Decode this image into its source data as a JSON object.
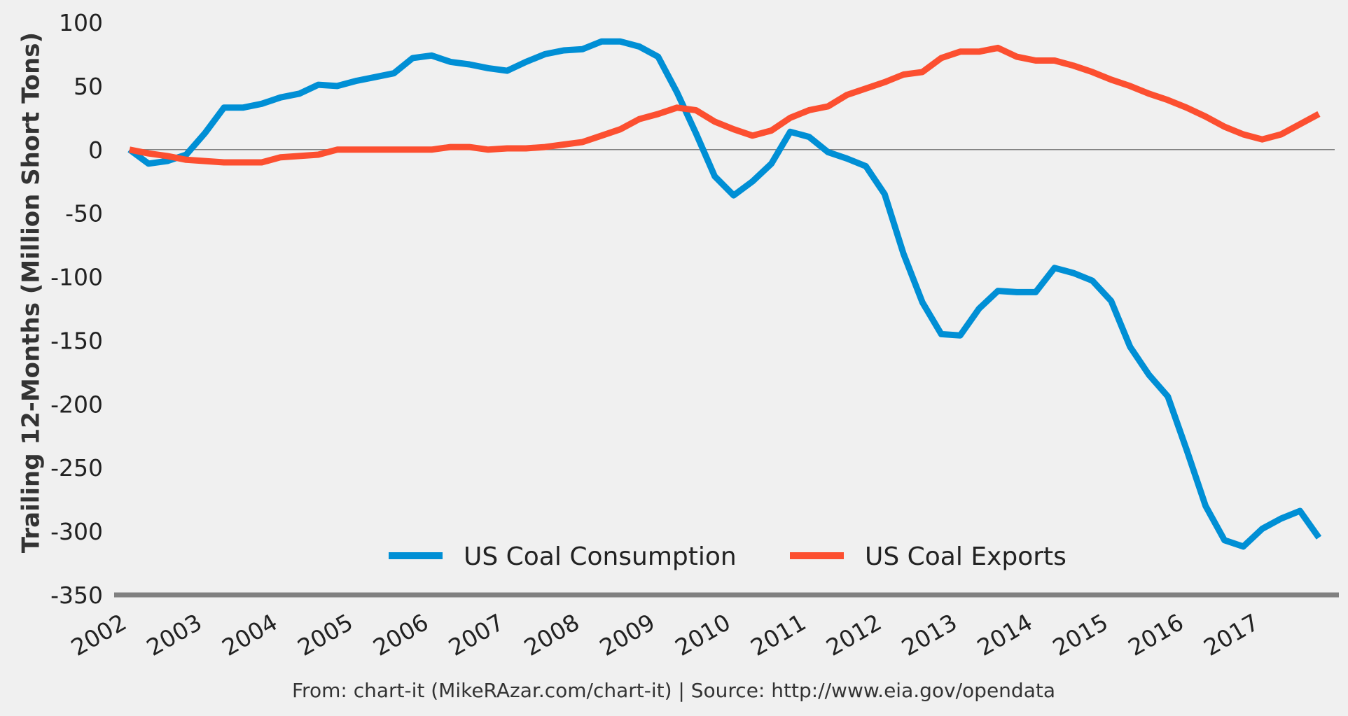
{
  "chart_data": {
    "type": "line",
    "title": "",
    "xlabel": "",
    "ylabel": "Trailing 12-Months (Million Short Tons)",
    "ylim": [
      -350,
      100
    ],
    "xlim": [
      2002.0,
      2017.96
    ],
    "yticks": [
      "100",
      "50",
      "0",
      "-50",
      "-100",
      "-150",
      "-200",
      "-250",
      "-300",
      "-350"
    ],
    "xticks": [
      "2002",
      "2003",
      "2004",
      "2005",
      "2006",
      "2007",
      "2008",
      "2009",
      "2010",
      "2011",
      "2012",
      "2013",
      "2014",
      "2015",
      "2016",
      "2017"
    ],
    "grid": false,
    "legend_position": "bottom-center",
    "footer": "From: chart-it (MikeRAzar.com/chart-it) | Source: http://www.eia.gov/opendata",
    "series": [
      {
        "name": "US Coal Consumption",
        "color": "#008fd5",
        "points": [
          [
            2002.0,
            0
          ],
          [
            2002.25,
            -11
          ],
          [
            2002.5,
            -9
          ],
          [
            2002.75,
            -4
          ],
          [
            2003.0,
            13
          ],
          [
            2003.25,
            33
          ],
          [
            2003.5,
            33
          ],
          [
            2003.75,
            36
          ],
          [
            2004.0,
            41
          ],
          [
            2004.25,
            44
          ],
          [
            2004.5,
            51
          ],
          [
            2004.75,
            50
          ],
          [
            2005.0,
            54
          ],
          [
            2005.25,
            57
          ],
          [
            2005.5,
            60
          ],
          [
            2005.75,
            72
          ],
          [
            2006.0,
            74
          ],
          [
            2006.25,
            69
          ],
          [
            2006.5,
            67
          ],
          [
            2006.75,
            64
          ],
          [
            2007.0,
            62
          ],
          [
            2007.25,
            69
          ],
          [
            2007.5,
            75
          ],
          [
            2007.75,
            78
          ],
          [
            2008.0,
            79
          ],
          [
            2008.25,
            85
          ],
          [
            2008.5,
            85
          ],
          [
            2008.75,
            81
          ],
          [
            2009.0,
            73
          ],
          [
            2009.25,
            45
          ],
          [
            2009.5,
            13
          ],
          [
            2009.75,
            -21
          ],
          [
            2010.0,
            -36
          ],
          [
            2010.25,
            -25
          ],
          [
            2010.5,
            -11
          ],
          [
            2010.75,
            14
          ],
          [
            2011.0,
            10
          ],
          [
            2011.25,
            -2
          ],
          [
            2011.5,
            -7
          ],
          [
            2011.75,
            -13
          ],
          [
            2012.0,
            -35
          ],
          [
            2012.25,
            -82
          ],
          [
            2012.5,
            -120
          ],
          [
            2012.75,
            -145
          ],
          [
            2013.0,
            -146
          ],
          [
            2013.25,
            -125
          ],
          [
            2013.5,
            -111
          ],
          [
            2013.75,
            -112
          ],
          [
            2014.0,
            -112
          ],
          [
            2014.25,
            -93
          ],
          [
            2014.5,
            -97
          ],
          [
            2014.75,
            -103
          ],
          [
            2015.0,
            -119
          ],
          [
            2015.25,
            -155
          ],
          [
            2015.5,
            -177
          ],
          [
            2015.75,
            -194
          ],
          [
            2016.0,
            -236
          ],
          [
            2016.25,
            -280
          ],
          [
            2016.5,
            -307
          ],
          [
            2016.75,
            -312
          ],
          [
            2017.0,
            -298
          ],
          [
            2017.25,
            -290
          ],
          [
            2017.5,
            -284
          ],
          [
            2017.75,
            -305
          ]
        ]
      },
      {
        "name": "US Coal Exports",
        "color": "#fc4f30",
        "points": [
          [
            2002.0,
            0
          ],
          [
            2002.25,
            -3
          ],
          [
            2002.5,
            -5
          ],
          [
            2002.75,
            -8
          ],
          [
            2003.0,
            -9
          ],
          [
            2003.25,
            -10
          ],
          [
            2003.5,
            -10
          ],
          [
            2003.75,
            -10
          ],
          [
            2004.0,
            -6
          ],
          [
            2004.25,
            -5
          ],
          [
            2004.5,
            -4
          ],
          [
            2004.75,
            0
          ],
          [
            2005.0,
            0
          ],
          [
            2005.25,
            0
          ],
          [
            2005.5,
            0
          ],
          [
            2005.75,
            0
          ],
          [
            2006.0,
            0
          ],
          [
            2006.25,
            2
          ],
          [
            2006.5,
            2
          ],
          [
            2006.75,
            0
          ],
          [
            2007.0,
            1
          ],
          [
            2007.25,
            1
          ],
          [
            2007.5,
            2
          ],
          [
            2007.75,
            4
          ],
          [
            2008.0,
            6
          ],
          [
            2008.25,
            11
          ],
          [
            2008.5,
            16
          ],
          [
            2008.75,
            24
          ],
          [
            2009.0,
            28
          ],
          [
            2009.25,
            33
          ],
          [
            2009.5,
            31
          ],
          [
            2009.75,
            22
          ],
          [
            2010.0,
            16
          ],
          [
            2010.25,
            11
          ],
          [
            2010.5,
            15
          ],
          [
            2010.75,
            25
          ],
          [
            2011.0,
            31
          ],
          [
            2011.25,
            34
          ],
          [
            2011.5,
            43
          ],
          [
            2011.75,
            48
          ],
          [
            2012.0,
            53
          ],
          [
            2012.25,
            59
          ],
          [
            2012.5,
            61
          ],
          [
            2012.75,
            72
          ],
          [
            2013.0,
            77
          ],
          [
            2013.25,
            77
          ],
          [
            2013.5,
            80
          ],
          [
            2013.75,
            73
          ],
          [
            2014.0,
            70
          ],
          [
            2014.25,
            70
          ],
          [
            2014.5,
            66
          ],
          [
            2014.75,
            61
          ],
          [
            2015.0,
            55
          ],
          [
            2015.25,
            50
          ],
          [
            2015.5,
            44
          ],
          [
            2015.75,
            39
          ],
          [
            2016.0,
            33
          ],
          [
            2016.25,
            26
          ],
          [
            2016.5,
            18
          ],
          [
            2016.75,
            12
          ],
          [
            2017.0,
            8
          ],
          [
            2017.25,
            12
          ],
          [
            2017.5,
            20
          ],
          [
            2017.75,
            28
          ]
        ]
      }
    ]
  }
}
